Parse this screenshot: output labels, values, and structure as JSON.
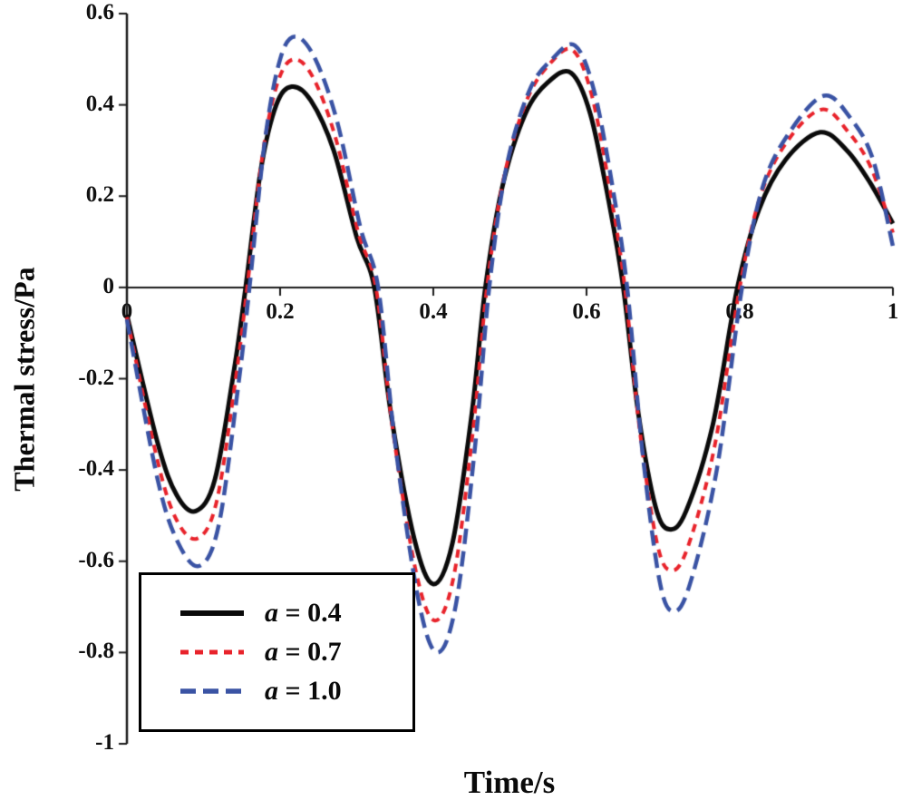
{
  "chart_data": {
    "type": "line",
    "title": "",
    "xlabel": "Time/s",
    "ylabel": "Thermal stress/Pa",
    "xlim": [
      0,
      1
    ],
    "ylim": [
      -1,
      0.6
    ],
    "x_ticks": [
      0,
      0.2,
      0.4,
      0.6,
      0.8,
      1
    ],
    "x_tick_labels": [
      "0",
      "0.2",
      "0.4",
      "0.6",
      "0.8",
      "1"
    ],
    "y_ticks": [
      0.6,
      0.4,
      0.2,
      0,
      -0.2,
      -0.4,
      -0.6,
      -0.8,
      -1
    ],
    "y_tick_labels": [
      "0.6",
      "0.4",
      "0.2",
      "0",
      "-0.2",
      "-0.4",
      "-0.6",
      "-0.8",
      "-1"
    ],
    "grid": false,
    "axis_color": "#1a1a1a",
    "legend_position": "bottom-left",
    "series": [
      {
        "name": "a = 0.4",
        "symbol": "a",
        "label_rest": " = 0.4",
        "color": "#0a0a0a",
        "line_width": 5,
        "dash": [],
        "points": [
          [
            0,
            -0.06
          ],
          [
            0.04,
            -0.34
          ],
          [
            0.065,
            -0.455
          ],
          [
            0.09,
            -0.49
          ],
          [
            0.115,
            -0.42
          ],
          [
            0.14,
            -0.18
          ],
          [
            0.155,
            0
          ],
          [
            0.175,
            0.26
          ],
          [
            0.195,
            0.4
          ],
          [
            0.215,
            0.44
          ],
          [
            0.24,
            0.41
          ],
          [
            0.27,
            0.3
          ],
          [
            0.3,
            0.11
          ],
          [
            0.323,
            0
          ],
          [
            0.345,
            -0.28
          ],
          [
            0.375,
            -0.55
          ],
          [
            0.4,
            -0.65
          ],
          [
            0.425,
            -0.56
          ],
          [
            0.45,
            -0.28
          ],
          [
            0.468,
            0
          ],
          [
            0.49,
            0.22
          ],
          [
            0.52,
            0.38
          ],
          [
            0.55,
            0.45
          ],
          [
            0.58,
            0.47
          ],
          [
            0.605,
            0.38
          ],
          [
            0.63,
            0.18
          ],
          [
            0.648,
            0
          ],
          [
            0.668,
            -0.28
          ],
          [
            0.69,
            -0.48
          ],
          [
            0.708,
            -0.53
          ],
          [
            0.73,
            -0.49
          ],
          [
            0.765,
            -0.3
          ],
          [
            0.797,
            0
          ],
          [
            0.825,
            0.17
          ],
          [
            0.86,
            0.28
          ],
          [
            0.905,
            0.34
          ],
          [
            0.94,
            0.3
          ],
          [
            0.97,
            0.23
          ],
          [
            1.0,
            0.14
          ]
        ]
      },
      {
        "name": "a = 0.7",
        "symbol": "a",
        "label_rest": " = 0.7",
        "color": "#e8232b",
        "line_width": 4,
        "dash": [
          9,
          7
        ],
        "points": [
          [
            0,
            -0.065
          ],
          [
            0.04,
            -0.38
          ],
          [
            0.065,
            -0.51
          ],
          [
            0.092,
            -0.55
          ],
          [
            0.117,
            -0.47
          ],
          [
            0.142,
            -0.2
          ],
          [
            0.157,
            0
          ],
          [
            0.177,
            0.29
          ],
          [
            0.197,
            0.45
          ],
          [
            0.218,
            0.5
          ],
          [
            0.243,
            0.46
          ],
          [
            0.272,
            0.33
          ],
          [
            0.302,
            0.12
          ],
          [
            0.325,
            0
          ],
          [
            0.347,
            -0.31
          ],
          [
            0.377,
            -0.62
          ],
          [
            0.402,
            -0.73
          ],
          [
            0.427,
            -0.63
          ],
          [
            0.452,
            -0.31
          ],
          [
            0.47,
            0
          ],
          [
            0.492,
            0.24
          ],
          [
            0.522,
            0.41
          ],
          [
            0.552,
            0.49
          ],
          [
            0.582,
            0.52
          ],
          [
            0.607,
            0.42
          ],
          [
            0.632,
            0.2
          ],
          [
            0.65,
            0
          ],
          [
            0.67,
            -0.32
          ],
          [
            0.692,
            -0.56
          ],
          [
            0.71,
            -0.62
          ],
          [
            0.732,
            -0.57
          ],
          [
            0.767,
            -0.35
          ],
          [
            0.8,
            0
          ],
          [
            0.827,
            0.2
          ],
          [
            0.862,
            0.32
          ],
          [
            0.907,
            0.39
          ],
          [
            0.942,
            0.34
          ],
          [
            0.972,
            0.26
          ],
          [
            1.0,
            0.12
          ]
        ]
      },
      {
        "name": "a = 1.0",
        "symbol": "a",
        "label_rest": " = 1.0",
        "color": "#3a53a4",
        "line_width": 4.5,
        "dash": [
          17,
          8
        ],
        "points": [
          [
            0,
            -0.07
          ],
          [
            0.04,
            -0.42
          ],
          [
            0.067,
            -0.56
          ],
          [
            0.095,
            -0.61
          ],
          [
            0.12,
            -0.52
          ],
          [
            0.145,
            -0.22
          ],
          [
            0.16,
            0
          ],
          [
            0.18,
            0.32
          ],
          [
            0.2,
            0.5
          ],
          [
            0.22,
            0.55
          ],
          [
            0.246,
            0.5
          ],
          [
            0.275,
            0.36
          ],
          [
            0.305,
            0.13
          ],
          [
            0.328,
            0
          ],
          [
            0.35,
            -0.34
          ],
          [
            0.38,
            -0.68
          ],
          [
            0.405,
            -0.8
          ],
          [
            0.43,
            -0.69
          ],
          [
            0.455,
            -0.34
          ],
          [
            0.473,
            0
          ],
          [
            0.495,
            0.26
          ],
          [
            0.525,
            0.43
          ],
          [
            0.555,
            0.5
          ],
          [
            0.585,
            0.53
          ],
          [
            0.61,
            0.43
          ],
          [
            0.635,
            0.21
          ],
          [
            0.653,
            0
          ],
          [
            0.673,
            -0.36
          ],
          [
            0.695,
            -0.64
          ],
          [
            0.713,
            -0.71
          ],
          [
            0.735,
            -0.65
          ],
          [
            0.77,
            -0.4
          ],
          [
            0.803,
            0
          ],
          [
            0.83,
            0.22
          ],
          [
            0.865,
            0.34
          ],
          [
            0.91,
            0.42
          ],
          [
            0.945,
            0.37
          ],
          [
            0.974,
            0.28
          ],
          [
            1.0,
            0.09
          ]
        ]
      }
    ]
  }
}
